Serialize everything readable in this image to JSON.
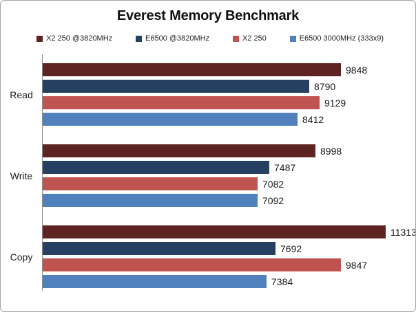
{
  "title": "Everest Memory Benchmark",
  "chart_data": {
    "type": "bar",
    "orientation": "horizontal",
    "title": "Everest Memory Benchmark",
    "categories": [
      "Read",
      "Write",
      "Copy"
    ],
    "series": [
      {
        "name": "X2 250 @3820MHz",
        "color": "#5e2422",
        "values": [
          9848,
          8998,
          11313
        ]
      },
      {
        "name": "E6500 @3820MHz",
        "color": "#254061",
        "values": [
          8790,
          7487,
          7692
        ]
      },
      {
        "name": "X2 250",
        "color": "#bf534f",
        "values": [
          9129,
          7082,
          9847
        ]
      },
      {
        "name": "E6500 3000MHz (333x9)",
        "color": "#5081bc",
        "values": [
          8412,
          7092,
          7384
        ]
      }
    ],
    "xlim": [
      0,
      12270
    ],
    "grid": false,
    "legend_position": "top",
    "value_labels": true
  },
  "colors": {
    "axis": "#8c8c8c",
    "frame_border": "#a6a6a6",
    "background": "#ffffff",
    "text": "#1a1a1a"
  }
}
